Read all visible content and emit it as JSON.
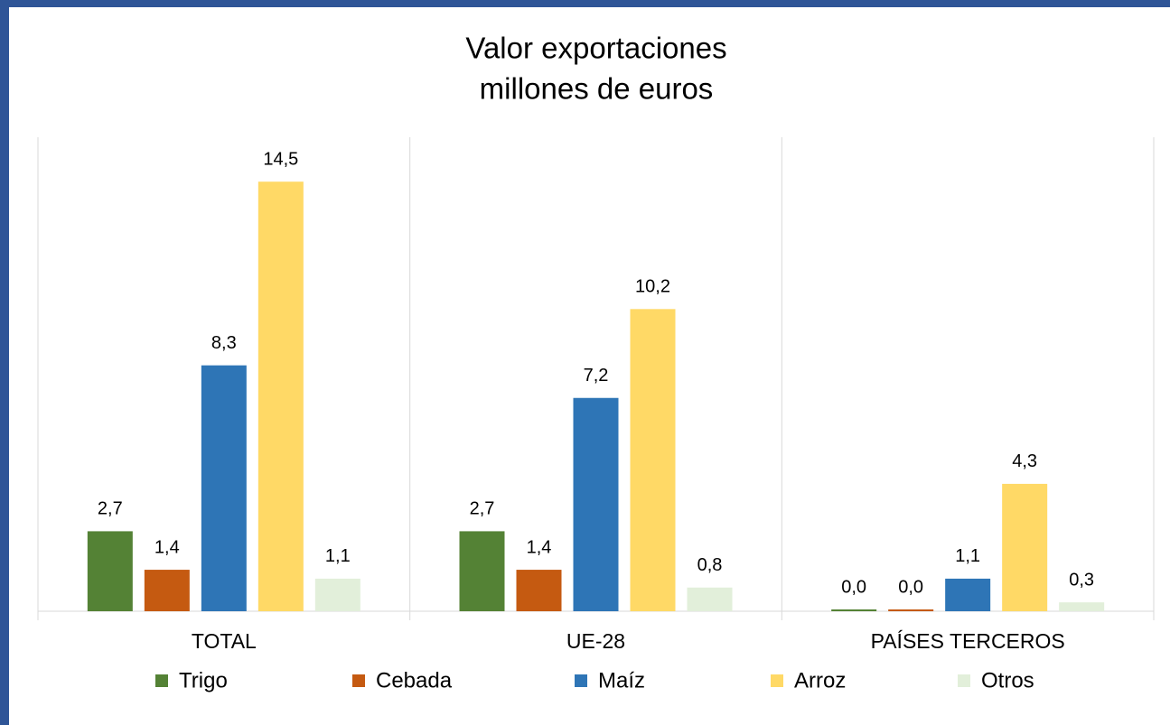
{
  "chart_data": {
    "type": "bar",
    "title": "Valor exportaciones",
    "subtitle": "millones de euros",
    "categories": [
      "TOTAL",
      "UE-28",
      "PAÍSES TERCEROS"
    ],
    "series": [
      {
        "name": "Trigo",
        "color": "#548235",
        "values": [
          2.7,
          2.7,
          0.0
        ],
        "value_labels": [
          "2,7",
          "2,7",
          "0,0"
        ]
      },
      {
        "name": "Cebada",
        "color": "#c55a11",
        "values": [
          1.4,
          1.4,
          0.0
        ],
        "value_labels": [
          "1,4",
          "1,4",
          "0,0"
        ]
      },
      {
        "name": "Maíz",
        "color": "#2e75b6",
        "values": [
          8.3,
          7.2,
          1.1
        ],
        "value_labels": [
          "8,3",
          "7,2",
          "1,1"
        ]
      },
      {
        "name": "Arroz",
        "color": "#ffd966",
        "values": [
          14.5,
          10.2,
          4.3
        ],
        "value_labels": [
          "14,5",
          "10,2",
          "4,3"
        ]
      },
      {
        "name": "Otros",
        "color": "#e2efda",
        "values": [
          1.1,
          0.8,
          0.3
        ],
        "value_labels": [
          "1,1",
          "0,8",
          "0,3"
        ]
      }
    ],
    "ylim": [
      0,
      16
    ],
    "legend": "bottom"
  }
}
